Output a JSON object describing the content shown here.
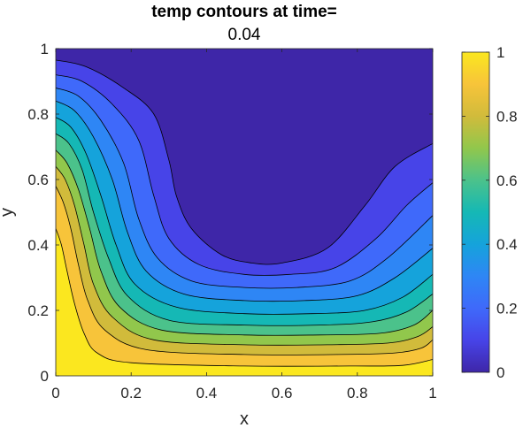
{
  "chart_data": {
    "type": "contour",
    "title": "temp contours at time=",
    "subtitle": "0.04",
    "xlabel": "x",
    "ylabel": "y",
    "xlim": [
      0,
      1
    ],
    "ylim": [
      0,
      1
    ],
    "x_ticks": [
      "0",
      "0.2",
      "0.4",
      "0.6",
      "0.8",
      "1"
    ],
    "y_ticks": [
      "0",
      "0.2",
      "0.4",
      "0.6",
      "0.8",
      "1"
    ],
    "colorbar": {
      "limits": [
        0,
        1
      ],
      "ticks": [
        "0",
        "0.2",
        "0.4",
        "0.6",
        "0.8",
        "1"
      ],
      "colormap": "parula"
    },
    "levels": [
      0.05,
      0.15,
      0.25,
      0.35,
      0.45,
      0.55,
      0.65,
      0.75,
      0.85,
      0.95
    ],
    "band_colors": [
      "#3e26a8",
      "#4744e8",
      "#3f69fa",
      "#2e86f5",
      "#15a3db",
      "#15b8b5",
      "#4bc28b",
      "#91c74c",
      "#d1bb3b",
      "#f7c43a",
      "#fbe71f"
    ],
    "contour_lines": [
      {
        "level": 0.05,
        "points": [
          [
            0.0,
            0.965
          ],
          [
            0.08,
            0.945
          ],
          [
            0.18,
            0.88
          ],
          [
            0.26,
            0.8
          ],
          [
            0.3,
            0.66
          ],
          [
            0.32,
            0.55
          ],
          [
            0.36,
            0.45
          ],
          [
            0.44,
            0.37
          ],
          [
            0.52,
            0.345
          ],
          [
            0.6,
            0.345
          ],
          [
            0.72,
            0.39
          ],
          [
            0.82,
            0.52
          ],
          [
            0.9,
            0.64
          ],
          [
            1.0,
            0.71
          ]
        ]
      },
      {
        "level": 0.15,
        "points": [
          [
            0.0,
            0.92
          ],
          [
            0.07,
            0.9
          ],
          [
            0.15,
            0.83
          ],
          [
            0.22,
            0.72
          ],
          [
            0.26,
            0.55
          ],
          [
            0.3,
            0.42
          ],
          [
            0.38,
            0.34
          ],
          [
            0.5,
            0.31
          ],
          [
            0.62,
            0.31
          ],
          [
            0.74,
            0.33
          ],
          [
            0.85,
            0.42
          ],
          [
            0.93,
            0.52
          ],
          [
            1.0,
            0.59
          ]
        ]
      },
      {
        "level": 0.25,
        "points": [
          [
            0.0,
            0.88
          ],
          [
            0.06,
            0.855
          ],
          [
            0.12,
            0.78
          ],
          [
            0.18,
            0.65
          ],
          [
            0.22,
            0.48
          ],
          [
            0.27,
            0.36
          ],
          [
            0.36,
            0.29
          ],
          [
            0.5,
            0.27
          ],
          [
            0.64,
            0.27
          ],
          [
            0.78,
            0.29
          ],
          [
            0.88,
            0.36
          ],
          [
            1.0,
            0.49
          ]
        ]
      },
      {
        "level": 0.35,
        "points": [
          [
            0.0,
            0.84
          ],
          [
            0.05,
            0.81
          ],
          [
            0.1,
            0.73
          ],
          [
            0.15,
            0.6
          ],
          [
            0.19,
            0.44
          ],
          [
            0.24,
            0.32
          ],
          [
            0.34,
            0.25
          ],
          [
            0.5,
            0.23
          ],
          [
            0.66,
            0.23
          ],
          [
            0.8,
            0.245
          ],
          [
            0.9,
            0.3
          ],
          [
            1.0,
            0.39
          ]
        ]
      },
      {
        "level": 0.45,
        "points": [
          [
            0.0,
            0.79
          ],
          [
            0.04,
            0.76
          ],
          [
            0.08,
            0.68
          ],
          [
            0.12,
            0.55
          ],
          [
            0.16,
            0.4
          ],
          [
            0.21,
            0.28
          ],
          [
            0.32,
            0.21
          ],
          [
            0.5,
            0.19
          ],
          [
            0.68,
            0.19
          ],
          [
            0.82,
            0.2
          ],
          [
            0.92,
            0.24
          ],
          [
            1.0,
            0.31
          ]
        ]
      },
      {
        "level": 0.55,
        "points": [
          [
            0.0,
            0.74
          ],
          [
            0.035,
            0.71
          ],
          [
            0.07,
            0.63
          ],
          [
            0.1,
            0.5
          ],
          [
            0.14,
            0.36
          ],
          [
            0.19,
            0.245
          ],
          [
            0.3,
            0.17
          ],
          [
            0.5,
            0.155
          ],
          [
            0.7,
            0.155
          ],
          [
            0.84,
            0.165
          ],
          [
            0.93,
            0.195
          ],
          [
            1.0,
            0.25
          ]
        ]
      },
      {
        "level": 0.65,
        "points": [
          [
            0.0,
            0.69
          ],
          [
            0.03,
            0.65
          ],
          [
            0.06,
            0.57
          ],
          [
            0.09,
            0.45
          ],
          [
            0.12,
            0.32
          ],
          [
            0.17,
            0.21
          ],
          [
            0.28,
            0.14
          ],
          [
            0.5,
            0.125
          ],
          [
            0.7,
            0.125
          ],
          [
            0.86,
            0.13
          ],
          [
            0.95,
            0.155
          ],
          [
            1.0,
            0.2
          ]
        ]
      },
      {
        "level": 0.75,
        "points": [
          [
            0.0,
            0.64
          ],
          [
            0.025,
            0.6
          ],
          [
            0.05,
            0.52
          ],
          [
            0.075,
            0.4
          ],
          [
            0.1,
            0.28
          ],
          [
            0.15,
            0.18
          ],
          [
            0.26,
            0.11
          ],
          [
            0.5,
            0.095
          ],
          [
            0.72,
            0.095
          ],
          [
            0.88,
            0.1
          ],
          [
            0.96,
            0.12
          ],
          [
            1.0,
            0.15
          ]
        ]
      },
      {
        "level": 0.85,
        "points": [
          [
            0.0,
            0.58
          ],
          [
            0.02,
            0.53
          ],
          [
            0.04,
            0.45
          ],
          [
            0.06,
            0.34
          ],
          [
            0.085,
            0.23
          ],
          [
            0.13,
            0.14
          ],
          [
            0.24,
            0.08
          ],
          [
            0.5,
            0.065
          ],
          [
            0.75,
            0.065
          ],
          [
            0.9,
            0.07
          ],
          [
            0.97,
            0.085
          ],
          [
            1.0,
            0.11
          ]
        ]
      },
      {
        "level": 0.95,
        "points": [
          [
            0.0,
            0.45
          ],
          [
            0.015,
            0.4
          ],
          [
            0.03,
            0.32
          ],
          [
            0.05,
            0.22
          ],
          [
            0.075,
            0.13
          ],
          [
            0.11,
            0.07
          ],
          [
            0.2,
            0.04
          ],
          [
            0.5,
            0.03
          ],
          [
            0.78,
            0.03
          ],
          [
            0.92,
            0.032
          ],
          [
            1.0,
            0.05
          ]
        ]
      }
    ]
  }
}
